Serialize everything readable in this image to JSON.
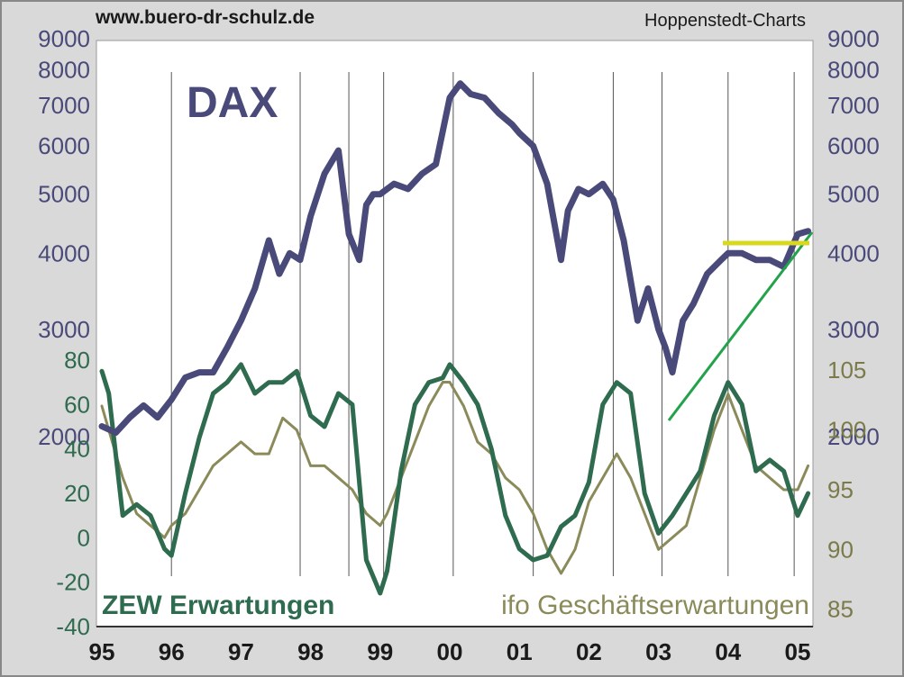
{
  "header": {
    "source_url": "www.buero-dr-schulz.de",
    "provider": "Hoppenstedt-Charts"
  },
  "chart_data": {
    "type": "line",
    "title": "DAX",
    "x_axis": {
      "tick_labels": [
        "95",
        "96",
        "97",
        "98",
        "99",
        "00",
        "01",
        "02",
        "03",
        "04",
        "05"
      ],
      "range_years": [
        1995.0,
        2005.3
      ]
    },
    "axes": {
      "dax_left": {
        "scale": "log",
        "range": [
          2000,
          9000
        ],
        "ticks": [
          2000,
          3000,
          4000,
          5000,
          6000,
          7000,
          8000,
          9000
        ],
        "color": "#4a4a7a"
      },
      "zew_left": {
        "scale": "linear",
        "range": [
          -40,
          80
        ],
        "ticks": [
          -40,
          -20,
          0,
          20,
          40,
          60,
          80
        ],
        "color": "#2e6b4f"
      },
      "dax_right": {
        "scale": "log",
        "ticks": [
          2000,
          3000,
          4000,
          5000,
          6000,
          7000,
          8000,
          9000
        ],
        "color": "#4a4a7a"
      },
      "ifo_right": {
        "scale": "linear",
        "range": [
          84,
          107.5
        ],
        "ticks": [
          85,
          90,
          95,
          100,
          105
        ],
        "color": "#7a7a4a"
      }
    },
    "series": [
      {
        "name": "DAX",
        "color": "#4a4a7a",
        "axis": "dax_left",
        "x": [
          1995.0,
          1995.2,
          1995.4,
          1995.6,
          1995.8,
          1996.0,
          1996.2,
          1996.4,
          1996.6,
          1996.8,
          1997.0,
          1997.2,
          1997.4,
          1997.55,
          1997.7,
          1997.85,
          1998.0,
          1998.2,
          1998.4,
          1998.55,
          1998.7,
          1998.8,
          1998.9,
          1999.0,
          1999.2,
          1999.4,
          1999.6,
          1999.8,
          2000.0,
          2000.15,
          2000.3,
          2000.5,
          2000.7,
          2000.9,
          2001.0,
          2001.2,
          2001.4,
          2001.6,
          2001.7,
          2001.85,
          2002.0,
          2002.2,
          2002.35,
          2002.5,
          2002.7,
          2002.85,
          2003.0,
          2003.1,
          2003.2,
          2003.35,
          2003.5,
          2003.7,
          2003.9,
          2004.0,
          2004.2,
          2004.4,
          2004.6,
          2004.8,
          2005.0,
          2005.15
        ],
        "values": [
          2080,
          2030,
          2150,
          2250,
          2150,
          2300,
          2500,
          2550,
          2550,
          2800,
          3100,
          3500,
          4200,
          3700,
          4000,
          3900,
          4600,
          5400,
          5900,
          4300,
          3900,
          4800,
          5000,
          5000,
          5200,
          5100,
          5400,
          5600,
          7200,
          7600,
          7300,
          7200,
          6800,
          6500,
          6300,
          6000,
          5200,
          3900,
          4700,
          5100,
          5000,
          5200,
          4900,
          4200,
          3100,
          3500,
          3000,
          2800,
          2550,
          3100,
          3300,
          3700,
          3900,
          4000,
          4000,
          3900,
          3900,
          3800,
          4300,
          4350
        ]
      },
      {
        "name": "ZEW Erwartungen",
        "color": "#2e6b4f",
        "axis": "zew_left",
        "x": [
          1995.0,
          1995.1,
          1995.3,
          1995.5,
          1995.7,
          1995.9,
          1996.0,
          1996.2,
          1996.4,
          1996.6,
          1996.8,
          1997.0,
          1997.2,
          1997.4,
          1997.6,
          1997.8,
          1998.0,
          1998.2,
          1998.4,
          1998.6,
          1998.8,
          1999.0,
          1999.1,
          1999.3,
          1999.5,
          1999.7,
          1999.9,
          2000.0,
          2000.2,
          2000.4,
          2000.6,
          2000.8,
          2001.0,
          2001.2,
          2001.4,
          2001.6,
          2001.8,
          2002.0,
          2002.2,
          2002.4,
          2002.6,
          2002.8,
          2003.0,
          2003.2,
          2003.4,
          2003.6,
          2003.8,
          2004.0,
          2004.2,
          2004.4,
          2004.6,
          2004.8,
          2005.0,
          2005.15
        ],
        "values": [
          75,
          65,
          10,
          15,
          10,
          -5,
          -8,
          20,
          45,
          65,
          70,
          78,
          65,
          70,
          70,
          75,
          55,
          50,
          65,
          60,
          -10,
          -25,
          -15,
          30,
          60,
          70,
          72,
          78,
          70,
          60,
          40,
          10,
          -5,
          -10,
          -8,
          5,
          10,
          25,
          60,
          70,
          65,
          20,
          2,
          10,
          20,
          30,
          55,
          70,
          60,
          30,
          35,
          30,
          10,
          20
        ]
      },
      {
        "name": "ifo Geschäftserwartungen",
        "color": "#8a8a5a",
        "axis": "ifo_right",
        "x": [
          1995.0,
          1995.1,
          1995.3,
          1995.5,
          1995.7,
          1995.9,
          1996.0,
          1996.2,
          1996.4,
          1996.6,
          1996.8,
          1997.0,
          1997.2,
          1997.4,
          1997.6,
          1997.8,
          1998.0,
          1998.2,
          1998.4,
          1998.6,
          1998.8,
          1999.0,
          1999.1,
          1999.3,
          1999.5,
          1999.7,
          1999.9,
          2000.0,
          2000.2,
          2000.4,
          2000.6,
          2000.8,
          2001.0,
          2001.2,
          2001.4,
          2001.6,
          2001.8,
          2002.0,
          2002.2,
          2002.4,
          2002.6,
          2002.8,
          2003.0,
          2003.2,
          2003.4,
          2003.6,
          2003.8,
          2004.0,
          2004.2,
          2004.4,
          2004.6,
          2004.8,
          2005.0,
          2005.15
        ],
        "values": [
          102,
          100,
          96,
          93,
          92,
          91,
          92,
          93,
          95,
          97,
          98,
          99,
          98,
          98,
          101,
          100,
          97,
          97,
          96,
          95,
          93,
          92,
          93,
          96,
          99,
          102,
          104,
          104,
          102,
          99,
          98,
          96,
          95,
          93,
          90,
          88,
          90,
          94,
          96,
          98,
          96,
          93,
          90,
          91,
          92,
          96,
          100,
          103,
          100,
          97,
          96,
          95,
          95,
          97
        ]
      }
    ],
    "series_labels": {
      "zew": "ZEW Erwartungen",
      "ifo": "ifo Geschäftserwartungen"
    }
  }
}
